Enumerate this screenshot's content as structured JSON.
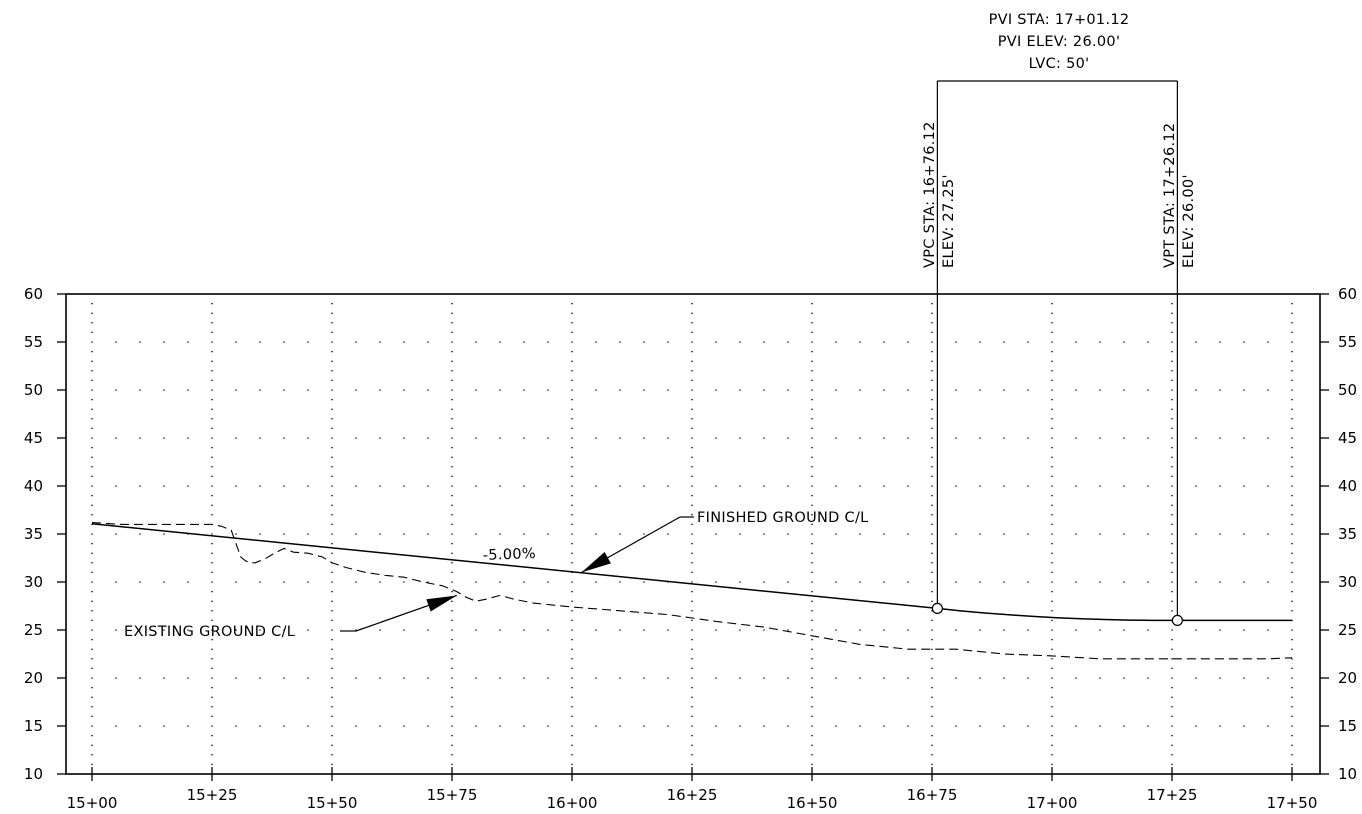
{
  "chart_data": {
    "type": "line",
    "title": "",
    "xlabel": "",
    "ylabel": "",
    "xlim_station_ft": [
      1500,
      1750
    ],
    "ylim": [
      10,
      60
    ],
    "grid": "dotted",
    "x_tick_labels": [
      "15+00",
      "15+25",
      "15+50",
      "15+75",
      "16+00",
      "16+25",
      "16+50",
      "16+75",
      "17+00",
      "17+25",
      "17+50"
    ],
    "y_tick_labels": [
      "60",
      "55",
      "50",
      "45",
      "40",
      "35",
      "30",
      "25",
      "20",
      "15",
      "10"
    ],
    "series": [
      {
        "style": "solid",
        "x": [
          1500,
          1676.12,
          1681,
          1686,
          1691,
          1696,
          1701,
          1706,
          1711,
          1716,
          1721,
          1726.12,
          1750
        ],
        "y": [
          36.06,
          27.25,
          26.99,
          26.77,
          26.58,
          26.42,
          26.28,
          26.17,
          26.09,
          26.03,
          26.0,
          26.0,
          26.0
        ]
      },
      {
        "style": "dashed",
        "x": [
          1500,
          1506,
          1512,
          1519,
          1525,
          1527,
          1529,
          1530,
          1531,
          1532,
          1533,
          1534,
          1536,
          1538,
          1540,
          1542,
          1545,
          1548,
          1550,
          1553,
          1557,
          1561,
          1565,
          1569,
          1573,
          1576,
          1578,
          1580,
          1582,
          1585,
          1588,
          1592,
          1600,
          1610,
          1620,
          1630,
          1640,
          1650,
          1660,
          1670,
          1680,
          1690,
          1700,
          1710,
          1720,
          1730,
          1740,
          1745,
          1750
        ],
        "y": [
          36.2,
          36.0,
          36.0,
          36.0,
          36.0,
          35.8,
          35.4,
          34.0,
          32.6,
          32.2,
          32.0,
          32.0,
          32.4,
          33.0,
          33.5,
          33.1,
          33.0,
          32.6,
          32.0,
          31.5,
          31.0,
          30.7,
          30.5,
          30.0,
          29.6,
          29.0,
          28.4,
          28.0,
          28.2,
          28.6,
          28.2,
          27.8,
          27.4,
          27.0,
          26.6,
          25.9,
          25.3,
          24.4,
          23.5,
          23.0,
          23.0,
          22.5,
          22.3,
          22.0,
          22.0,
          22.0,
          22.0,
          22.0,
          22.1
        ]
      }
    ],
    "curve_points": [
      {
        "x": 1676.12,
        "y": 27.25
      },
      {
        "x": 1726.12,
        "y": 26.0
      }
    ],
    "pvi_x": 1701.12,
    "annotations": {
      "pvi_sta": "PVI  STA: 17+01.12",
      "pvi_elev": "PVI  ELEV: 26.00'",
      "lvc": "LVC: 50'",
      "vpc_sta": "VPC  STA: 16+76.12",
      "vpc_elev": "ELEV: 27.25'",
      "vpt_sta": "VPT  STA: 17+26.12",
      "vpt_elev": "ELEV: 26.00'",
      "grade": "-5.00%",
      "finished_ground": "FINISHED  GROUND  C/L",
      "existing_ground": "EXISTING  GROUND  C/L"
    },
    "callouts": {
      "finished_ground_arrow_tip": {
        "x": 1602,
        "y": 31.0
      },
      "existing_ground_arrow_tip": {
        "x": 1576,
        "y": 28.6
      }
    }
  }
}
